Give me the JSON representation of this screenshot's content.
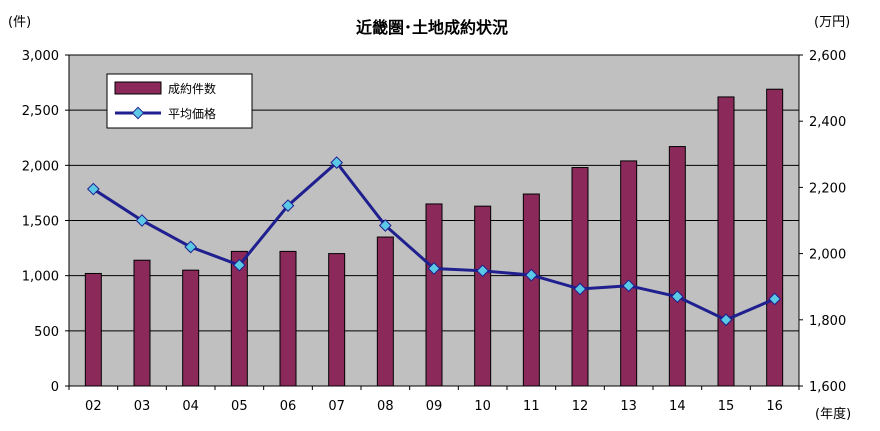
{
  "chart_data": {
    "type": "bar+line",
    "title": "近畿圏･土地成約状況",
    "categories": [
      "02",
      "03",
      "04",
      "05",
      "06",
      "07",
      "08",
      "09",
      "10",
      "11",
      "12",
      "13",
      "14",
      "15",
      "16"
    ],
    "series": [
      {
        "name": "成約件数",
        "kind": "bar",
        "axis": "left",
        "color": "#8B2A5A",
        "values": [
          1020,
          1140,
          1050,
          1220,
          1220,
          1200,
          1350,
          1650,
          1630,
          1740,
          1980,
          2040,
          2170,
          2620,
          2690
        ]
      },
      {
        "name": "平均価格",
        "kind": "line",
        "axis": "right",
        "color": "#1F1F8F",
        "marker_color": "#5BC8E6",
        "values": [
          2195,
          2100,
          2020,
          1965,
          2145,
          2275,
          2085,
          1955,
          1948,
          1935,
          1893,
          1903,
          1870,
          1800,
          1863
        ]
      }
    ],
    "y_left": {
      "unit": "(件)",
      "min": 0,
      "max": 3000,
      "step": 500,
      "tick_labels": [
        "0",
        "500",
        "1,000",
        "1,500",
        "2,000",
        "2,500",
        "3,000"
      ]
    },
    "y_right": {
      "unit": "(万円)",
      "min": 1600,
      "max": 2600,
      "step": 200,
      "tick_labels": [
        "1,600",
        "1,800",
        "2,000",
        "2,200",
        "2,400",
        "2,600"
      ]
    },
    "x_unit": "(年度)",
    "grid": true,
    "legend": {
      "position": "top-left",
      "entries": [
        "成約件数",
        "平均価格"
      ]
    },
    "colors": {
      "plot_bg": "#C0C0C0",
      "grid": "#000000"
    }
  }
}
